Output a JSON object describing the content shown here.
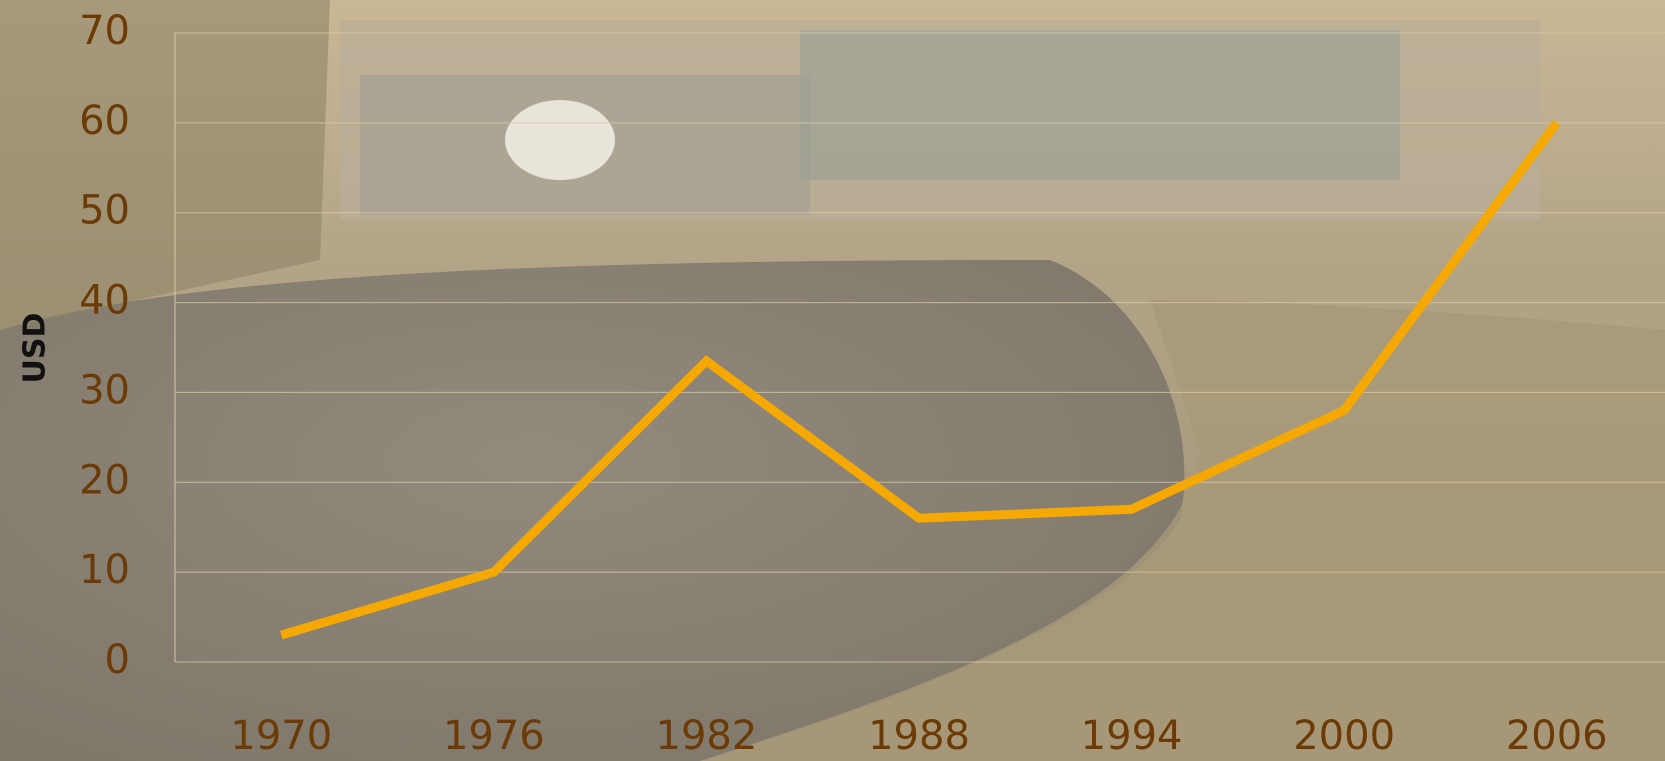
{
  "chart_data": {
    "type": "line",
    "categories": [
      "1970",
      "1976",
      "1982",
      "1988",
      "1994",
      "2000",
      "2006"
    ],
    "series": [
      {
        "name": "USD",
        "color": "#f5a800",
        "values": [
          3,
          10,
          33.5,
          16,
          17,
          28,
          60
        ]
      }
    ],
    "y_label": "USD",
    "ylim": [
      0,
      70
    ],
    "yticks": [
      0,
      10,
      20,
      30,
      40,
      50,
      60,
      70
    ],
    "grid": true
  }
}
